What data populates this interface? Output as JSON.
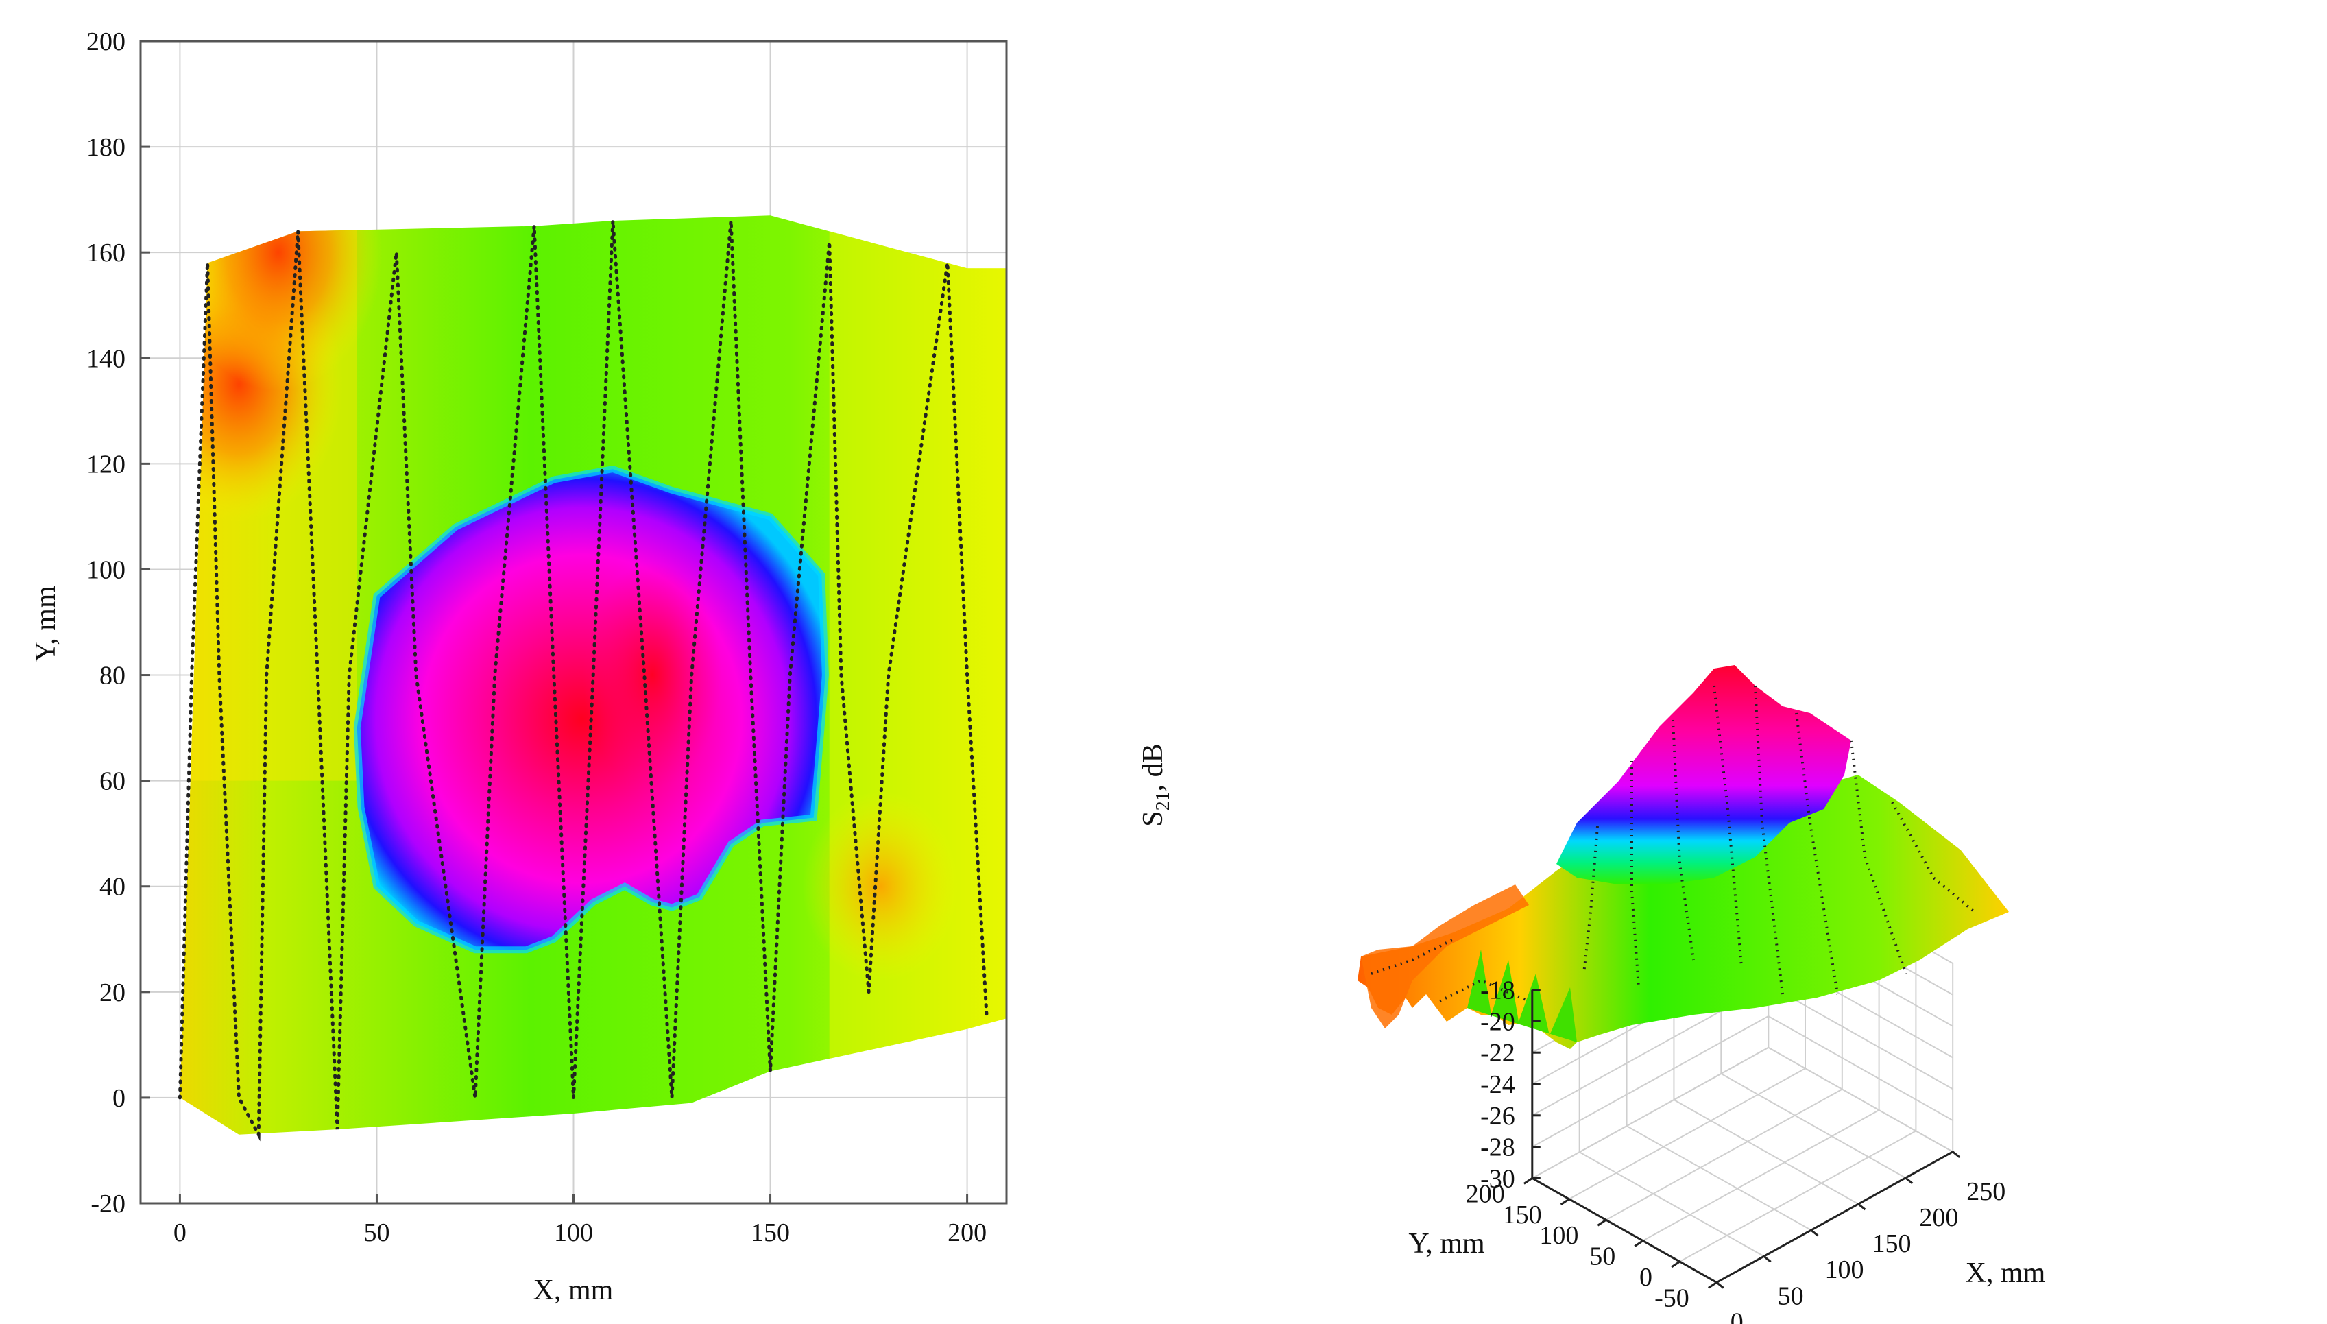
{
  "chart_data": [
    {
      "type": "heatmap",
      "title": "",
      "xlabel": "X, mm",
      "ylabel": "Y, mm",
      "xlim": [
        -10,
        210
      ],
      "ylim": [
        -20,
        200
      ],
      "xticks": [
        0,
        50,
        100,
        150,
        200
      ],
      "yticks": [
        -20,
        0,
        20,
        40,
        60,
        80,
        100,
        120,
        140,
        160,
        180,
        200
      ],
      "grid": true,
      "scan_region_outline": [
        [
          0,
          0
        ],
        [
          7,
          158
        ],
        [
          30,
          164
        ],
        [
          90,
          165
        ],
        [
          110,
          166
        ],
        [
          150,
          167
        ],
        [
          175,
          162
        ],
        [
          200,
          157
        ],
        [
          210,
          157
        ],
        [
          210,
          15
        ],
        [
          200,
          13
        ],
        [
          150,
          5
        ],
        [
          130,
          -1
        ],
        [
          100,
          -3
        ],
        [
          40,
          -6
        ],
        [
          15,
          -7
        ],
        [
          0,
          0
        ]
      ],
      "hot_lobe_outline": [
        [
          45,
          70
        ],
        [
          50,
          95
        ],
        [
          70,
          108
        ],
        [
          95,
          117
        ],
        [
          110,
          119
        ],
        [
          125,
          115
        ],
        [
          150,
          110
        ],
        [
          163,
          99
        ],
        [
          164,
          80
        ],
        [
          161,
          53
        ],
        [
          148,
          52
        ],
        [
          140,
          48
        ],
        [
          132,
          38
        ],
        [
          125,
          36
        ],
        [
          120,
          37
        ],
        [
          113,
          40
        ],
        [
          105,
          37
        ],
        [
          95,
          30
        ],
        [
          88,
          28
        ],
        [
          75,
          28
        ],
        [
          60,
          33
        ],
        [
          50,
          40
        ],
        [
          46,
          55
        ],
        [
          45,
          70
        ]
      ],
      "warm_spots": [
        {
          "x": 15,
          "y": 135,
          "color": "#ff5000"
        },
        {
          "x": 25,
          "y": 160,
          "color": "#ff6a00"
        },
        {
          "x": 178,
          "y": 40,
          "color": "#ff9a10"
        },
        {
          "x": 120,
          "y": 80,
          "color": "#ff1040"
        }
      ],
      "scan_path": [
        [
          0,
          0
        ],
        [
          3,
          80
        ],
        [
          7,
          158
        ],
        [
          10,
          80
        ],
        [
          15,
          0
        ],
        [
          20,
          -7
        ],
        [
          22,
          80
        ],
        [
          30,
          164
        ],
        [
          35,
          80
        ],
        [
          40,
          -6
        ],
        [
          43,
          80
        ],
        [
          55,
          160
        ],
        [
          60,
          80
        ],
        [
          75,
          0
        ],
        [
          80,
          80
        ],
        [
          90,
          165
        ],
        [
          95,
          80
        ],
        [
          100,
          0
        ],
        [
          105,
          80
        ],
        [
          110,
          166
        ],
        [
          118,
          80
        ],
        [
          125,
          0
        ],
        [
          130,
          80
        ],
        [
          140,
          166
        ],
        [
          145,
          80
        ],
        [
          150,
          5
        ],
        [
          155,
          80
        ],
        [
          165,
          162
        ],
        [
          168,
          80
        ],
        [
          175,
          20
        ],
        [
          180,
          80
        ],
        [
          195,
          158
        ],
        [
          200,
          80
        ],
        [
          205,
          15
        ]
      ],
      "colors": {
        "low": "#00ff00",
        "mid": "#ffff00",
        "high": "#ff6000",
        "peak_edge": "#0018ff",
        "peak_rim": "#00e0ff",
        "peak": "#ff00c8",
        "peak_core": "#ff0033"
      }
    },
    {
      "type": "surface",
      "title": "",
      "xlabel": "X, mm",
      "ylabel": "Y, mm",
      "zlabel": "S21, dB",
      "zlabel_sub": "21",
      "xlim": [
        0,
        250
      ],
      "ylim": [
        -50,
        200
      ],
      "zlim": [
        -30,
        -18
      ],
      "xticks": [
        0,
        50,
        100,
        150,
        200,
        250
      ],
      "yticks": [
        -50,
        0,
        50,
        100,
        150,
        200
      ],
      "zticks": [
        -18,
        -20,
        -22,
        -24,
        -26,
        -28,
        -30
      ],
      "grid": true,
      "peak": {
        "x": 120,
        "y": 80,
        "z": -19.5
      }
    }
  ]
}
